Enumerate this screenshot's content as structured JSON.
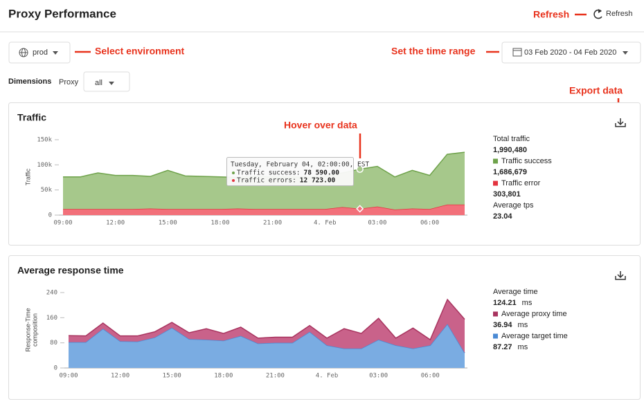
{
  "header": {
    "title": "Proxy Performance",
    "refresh": "Refresh"
  },
  "filters": {
    "environment": "prod",
    "time_range": "03 Feb 2020 - 04 Feb 2020",
    "dimensions_label": "Dimensions",
    "proxy_label": "Proxy",
    "proxy": "all"
  },
  "annotations": {
    "refresh": "Refresh",
    "environment": "Select environment",
    "time_range": "Set the time range",
    "hover": "Hover over data",
    "export": "Export data"
  },
  "chart_data": [
    {
      "type": "area",
      "stacked": true,
      "title": "Traffic",
      "y_label": [
        "Traffic"
      ],
      "categories": [
        "09:00",
        null,
        null,
        "12:00",
        null,
        null,
        "15:00",
        null,
        null,
        "18:00",
        null,
        null,
        "21:00",
        null,
        null,
        "4. Feb",
        null,
        null,
        "03:00",
        null,
        null,
        "06:00",
        null,
        null
      ],
      "series": [
        {
          "name": "Traffic error",
          "color": "#f2707a",
          "line_color": "#e3343f",
          "summary": "303,801",
          "values": [
            12000,
            12000,
            12000,
            12000,
            12000,
            13000,
            12000,
            12000,
            12000,
            12000,
            13000,
            12000,
            12000,
            12000,
            12000,
            12000,
            16000,
            12723,
            17000,
            11000,
            13000,
            12000,
            21000,
            21000
          ]
        },
        {
          "name": "Traffic success",
          "color": "#a6c88b",
          "line_color": "#6ea24a",
          "summary": "1,686,679",
          "values": [
            64000,
            64000,
            72000,
            67000,
            67000,
            64000,
            77000,
            66000,
            65000,
            64000,
            62000,
            65000,
            64000,
            64000,
            64000,
            65000,
            68000,
            78590,
            80000,
            65000,
            76000,
            67000,
            100000,
            104000
          ]
        }
      ],
      "ylim": [
        0,
        150000
      ],
      "yticks": [
        0,
        {
          "value": 50000,
          "label": "50k"
        },
        {
          "value": 100000,
          "label": "100k"
        },
        {
          "value": 150000,
          "label": "150k"
        }
      ],
      "stats": [
        {
          "label": "Total traffic",
          "value": "1,990,480"
        },
        {
          "label": "Average tps",
          "value": "23.04"
        }
      ],
      "tooltip": {
        "title": "Tuesday, February 04, 02:00:00, EST",
        "rows": [
          {
            "label": "Traffic success:",
            "value": "78 590.00"
          },
          {
            "label": "Traffic errors:",
            "value": "12 723.00"
          }
        ]
      }
    },
    {
      "type": "area",
      "stacked": true,
      "title": "Average response time",
      "y_label": [
        "Response-Time",
        "composition"
      ],
      "categories": [
        "09:00",
        null,
        null,
        "12:00",
        null,
        null,
        "15:00",
        null,
        null,
        "18:00",
        null,
        null,
        "21:00",
        null,
        null,
        "4. Feb",
        null,
        null,
        "03:00",
        null,
        null,
        "06:00",
        null,
        null
      ],
      "series": [
        {
          "name": "Average target time",
          "color": "#7aacE2",
          "line_color": "#4a8ad4",
          "summary": "87.27",
          "values": [
            82,
            82,
            125,
            85,
            84,
            97,
            128,
            92,
            90,
            87,
            102,
            78,
            80,
            80,
            115,
            72,
            62,
            62,
            90,
            72,
            62,
            72,
            140,
            48
          ]
        },
        {
          "name": "Average proxy time",
          "color": "#c9628a",
          "line_color": "#a8345f",
          "summary": "36.94",
          "values": [
            21,
            20,
            18,
            17,
            18,
            18,
            17,
            20,
            35,
            23,
            28,
            17,
            18,
            18,
            20,
            23,
            63,
            48,
            68,
            23,
            65,
            18,
            78,
            107
          ]
        }
      ],
      "ylim": [
        0,
        240
      ],
      "yticks": [
        0,
        80,
        160,
        240
      ],
      "stats": [
        {
          "label": "Average time",
          "value": "124.21"
        }
      ],
      "unit": "ms"
    }
  ]
}
